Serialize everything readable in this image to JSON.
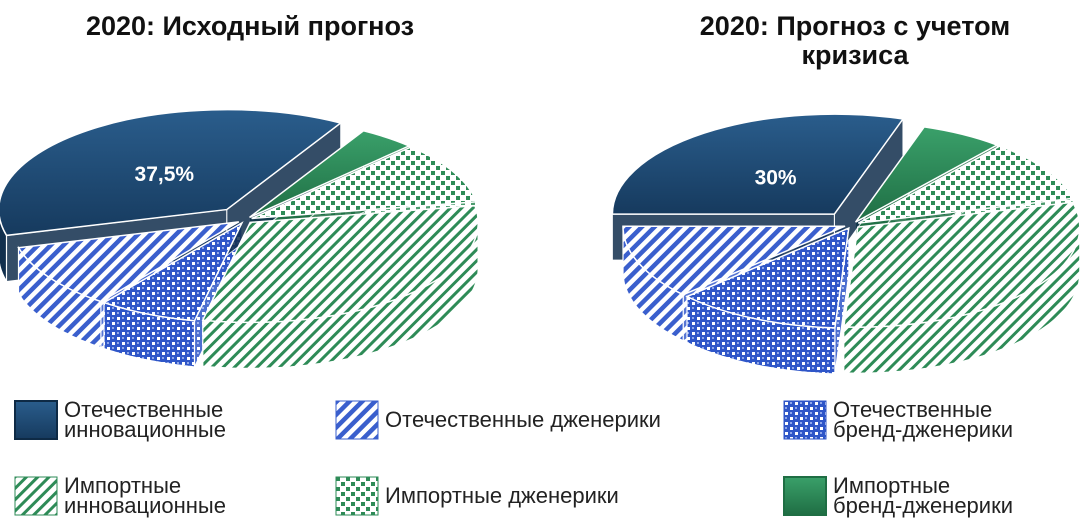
{
  "colors": {
    "domestic_innovative": "#1f4e7a",
    "domestic_generics": "#3a5fcd",
    "domestic_brand_generics": "#2f56c8",
    "import_innovative": "#2e8b57",
    "import_generics": "#2e8b57",
    "import_brand_generics": "#2e8b57"
  },
  "chart_data": [
    {
      "type": "pie",
      "title": "2020: Исходный прогноз",
      "slices": [
        {
          "label": "Отечественные инновационные",
          "value": 37.5,
          "data_label": "37,5%"
        },
        {
          "label": "Импортные бренд-дженерики",
          "value": 4
        },
        {
          "label": "Импортные дженерики",
          "value": 10
        },
        {
          "label": "Импортные инновационные",
          "value": 31
        },
        {
          "label": "Отечественные бренд-дженерики",
          "value": 7
        },
        {
          "label": "Отечественные дженерики",
          "value": 10.5
        }
      ]
    },
    {
      "type": "pie",
      "title": "2020: Прогноз с учетом\nкризиса",
      "slices": [
        {
          "label": "Отечественные инновационные",
          "value": 30,
          "data_label": "30%"
        },
        {
          "label": "Импортные бренд-дженерики",
          "value": 6
        },
        {
          "label": "Импортные дженерики",
          "value": 10
        },
        {
          "label": "Импортные инновационные",
          "value": 30
        },
        {
          "label": "Отечественные бренд-дженерики",
          "value": 12
        },
        {
          "label": "Отечественные дженерики",
          "value": 12
        }
      ]
    }
  ],
  "legend": [
    {
      "label": "Отечественные\nинновационные",
      "pattern": "p-solid-navy"
    },
    {
      "label": "Отечественные дженерики",
      "pattern": "p-diag-blue"
    },
    {
      "label": "Отечественные\nбренд-дженерики",
      "pattern": "p-check-blue"
    },
    {
      "label": "Импортные\nинновационные",
      "pattern": "p-diag-green"
    },
    {
      "label": "Импортные дженерики",
      "pattern": "p-dots-green"
    },
    {
      "label": "Импортные\nбренд-дженерики",
      "pattern": "p-solid-green"
    }
  ]
}
